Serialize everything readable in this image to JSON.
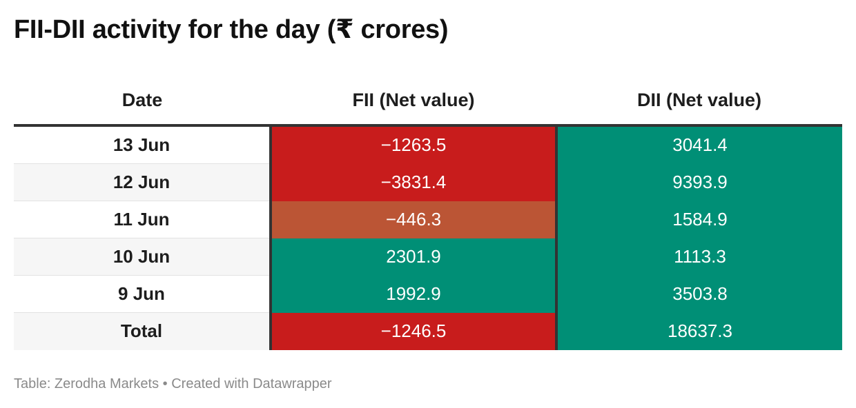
{
  "title": "FII-DII activity for the day (₹ crores)",
  "footer": {
    "source": "Table: Zerodha Markets",
    "separator": " • ",
    "credit": "Created with Datawrapper"
  },
  "colors": {
    "negative": "#c81c1c",
    "mild_negative": "#bb5535",
    "positive": "#008f76"
  },
  "chart_data": {
    "type": "table",
    "title": "FII-DII activity for the day (₹ crores)",
    "columns": [
      "Date",
      "FII (Net value)",
      "DII (Net value)"
    ],
    "rows": [
      {
        "date": "13 Jun",
        "fii": "−1263.5",
        "dii": "3041.4",
        "fii_value": -1263.5,
        "dii_value": 3041.4
      },
      {
        "date": "12 Jun",
        "fii": "−3831.4",
        "dii": "9393.9",
        "fii_value": -3831.4,
        "dii_value": 9393.9
      },
      {
        "date": "11 Jun",
        "fii": "−446.3",
        "dii": "1584.9",
        "fii_value": -446.3,
        "dii_value": 1584.9
      },
      {
        "date": "10 Jun",
        "fii": "2301.9",
        "dii": "1113.3",
        "fii_value": 2301.9,
        "dii_value": 1113.3
      },
      {
        "date": "9 Jun",
        "fii": "1992.9",
        "dii": "3503.8",
        "fii_value": 1992.9,
        "dii_value": 3503.8
      },
      {
        "date": "Total",
        "fii": "−1246.5",
        "dii": "18637.3",
        "fii_value": -1246.5,
        "dii_value": 18637.3
      }
    ]
  }
}
